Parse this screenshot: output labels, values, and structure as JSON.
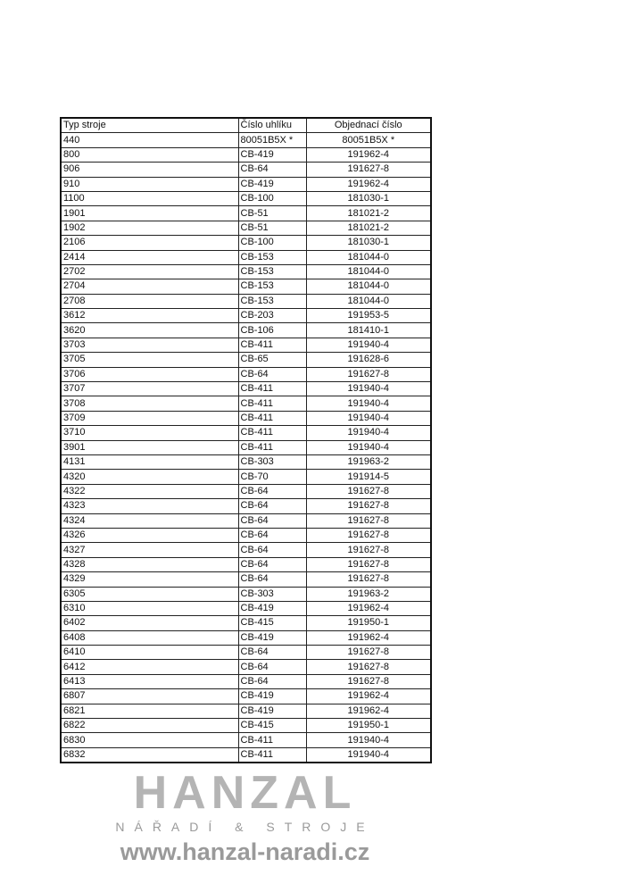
{
  "table": {
    "headers": [
      "Typ stroje",
      "Číslo uhlíku",
      "Objednací číslo"
    ],
    "rows": [
      [
        "440",
        "80051B5X *",
        "80051B5X *"
      ],
      [
        "800",
        "CB-419",
        "191962-4"
      ],
      [
        "906",
        "CB-64",
        "191627-8"
      ],
      [
        "910",
        "CB-419",
        "191962-4"
      ],
      [
        "1100",
        "CB-100",
        "181030-1"
      ],
      [
        "1901",
        "CB-51",
        "181021-2"
      ],
      [
        "1902",
        "CB-51",
        "181021-2"
      ],
      [
        "2106",
        "CB-100",
        "181030-1"
      ],
      [
        "2414",
        "CB-153",
        "181044-0"
      ],
      [
        "2702",
        "CB-153",
        "181044-0"
      ],
      [
        "2704",
        "CB-153",
        "181044-0"
      ],
      [
        "2708",
        "CB-153",
        "181044-0"
      ],
      [
        "3612",
        "CB-203",
        "191953-5"
      ],
      [
        "3620",
        "CB-106",
        "181410-1"
      ],
      [
        "3703",
        "CB-411",
        "191940-4"
      ],
      [
        "3705",
        "CB-65",
        "191628-6"
      ],
      [
        "3706",
        "CB-64",
        "191627-8"
      ],
      [
        "3707",
        "CB-411",
        "191940-4"
      ],
      [
        "3708",
        "CB-411",
        "191940-4"
      ],
      [
        "3709",
        "CB-411",
        "191940-4"
      ],
      [
        "3710",
        "CB-411",
        "191940-4"
      ],
      [
        "3901",
        "CB-411",
        "191940-4"
      ],
      [
        "4131",
        "CB-303",
        "191963-2"
      ],
      [
        "4320",
        "CB-70",
        "191914-5"
      ],
      [
        "4322",
        "CB-64",
        "191627-8"
      ],
      [
        "4323",
        "CB-64",
        "191627-8"
      ],
      [
        "4324",
        "CB-64",
        "191627-8"
      ],
      [
        "4326",
        "CB-64",
        "191627-8"
      ],
      [
        "4327",
        "CB-64",
        "191627-8"
      ],
      [
        "4328",
        "CB-64",
        "191627-8"
      ],
      [
        "4329",
        "CB-64",
        "191627-8"
      ],
      [
        "6305",
        "CB-303",
        "191963-2"
      ],
      [
        "6310",
        "CB-419",
        "191962-4"
      ],
      [
        "6402",
        "CB-415",
        "191950-1"
      ],
      [
        "6408",
        "CB-419",
        "191962-4"
      ],
      [
        "6410",
        "CB-64",
        "191627-8"
      ],
      [
        "6412",
        "CB-64",
        "191627-8"
      ],
      [
        "6413",
        "CB-64",
        "191627-8"
      ],
      [
        "6807",
        "CB-419",
        "191962-4"
      ],
      [
        "6821",
        "CB-419",
        "191962-4"
      ],
      [
        "6822",
        "CB-415",
        "191950-1"
      ],
      [
        "6830",
        "CB-411",
        "191940-4"
      ],
      [
        "6832",
        "CB-411",
        "191940-4"
      ]
    ]
  },
  "watermark": {
    "brand": "HANZAL",
    "tagline": "NÁŘADÍ & STROJE",
    "url": "www.hanzal-naradi.cz"
  }
}
